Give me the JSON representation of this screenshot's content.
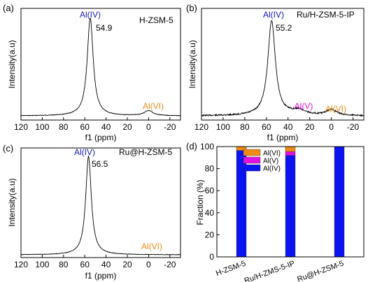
{
  "colors": {
    "aliv": "#1515c8",
    "alv": "#e010e0",
    "alvi": "#f08a16",
    "bar_blue": "#0a14f0",
    "line": "#000000"
  },
  "chart_data": [
    {
      "type": "line",
      "panel_label": "(a)",
      "sample": "H-ZSM-5",
      "xlabel": "f1 (ppm)",
      "ylabel": "Intensity(a.u)",
      "xlim": [
        120,
        -30
      ],
      "x_direction": "reversed",
      "xticks": [
        "120",
        "100",
        "80",
        "60",
        "40",
        "20",
        "0",
        "-20"
      ],
      "peaks": [
        {
          "label": "Al(IV)",
          "position": 54.9,
          "value_label": "54.9",
          "relative_height": 1.0,
          "width": 3.4
        },
        {
          "label": "Al(VI)",
          "position": 0,
          "value_label": "",
          "relative_height": 0.05,
          "width": 5
        }
      ],
      "grid": false,
      "legend": "none"
    },
    {
      "type": "line",
      "panel_label": "(b)",
      "sample": "Ru/H-ZSM-5-IP",
      "xlabel": "f1 (ppm)",
      "ylabel": "Intensity(a.u)",
      "xlim": [
        120,
        -30
      ],
      "x_direction": "reversed",
      "xticks": [
        "120",
        "100",
        "80",
        "60",
        "40",
        "20",
        "0",
        "-20"
      ],
      "peaks": [
        {
          "label": "Al(IV)",
          "position": 55.2,
          "value_label": "55.2",
          "relative_height": 1.0,
          "width": 4.2
        },
        {
          "label": "Al(V)",
          "position": 30,
          "value_label": "",
          "relative_height": 0.05,
          "width": 8
        },
        {
          "label": "Al(VI)",
          "position": 0,
          "value_label": "",
          "relative_height": 0.06,
          "width": 6
        }
      ],
      "grid": false,
      "legend": "none"
    },
    {
      "type": "line",
      "panel_label": "(c)",
      "sample": "Ru@H-ZSM-5",
      "xlabel": "f1 (ppm)",
      "ylabel": "Intensity(a.u)",
      "xlim": [
        120,
        -30
      ],
      "x_direction": "reversed",
      "xticks": [
        "120",
        "100",
        "80",
        "60",
        "40",
        "20",
        "0",
        "-20"
      ],
      "peaks": [
        {
          "label": "Al(IV)",
          "position": 56.5,
          "value_label": "56.5",
          "relative_height": 1.0,
          "width": 3.2
        },
        {
          "label": "Al(VI)",
          "position": 0,
          "value_label": "",
          "relative_height": 0.0,
          "width": 5
        }
      ],
      "grid": false,
      "legend": "none"
    },
    {
      "type": "bar",
      "stacked": true,
      "panel_label": "(d)",
      "categories": [
        "H-ZSM-5",
        "Ru/H-ZMS-5-IP",
        "Ru@H-ZSM-5"
      ],
      "ylabel": "Fraction (%)",
      "ylim": [
        0,
        100
      ],
      "yticks": [
        "0",
        "20",
        "40",
        "60",
        "80",
        "100"
      ],
      "series": [
        {
          "name": "Al(IV)",
          "values": [
            96.5,
            92,
            100
          ]
        },
        {
          "name": "Al(V)",
          "values": [
            0,
            3.5,
            0
          ]
        },
        {
          "name": "Al(VI)",
          "values": [
            3.5,
            4.5,
            0
          ]
        }
      ],
      "legend": "top-left",
      "legend_order": [
        "Al(VI)",
        "Al(V)",
        "Al(IV)"
      ],
      "grid": false
    }
  ]
}
